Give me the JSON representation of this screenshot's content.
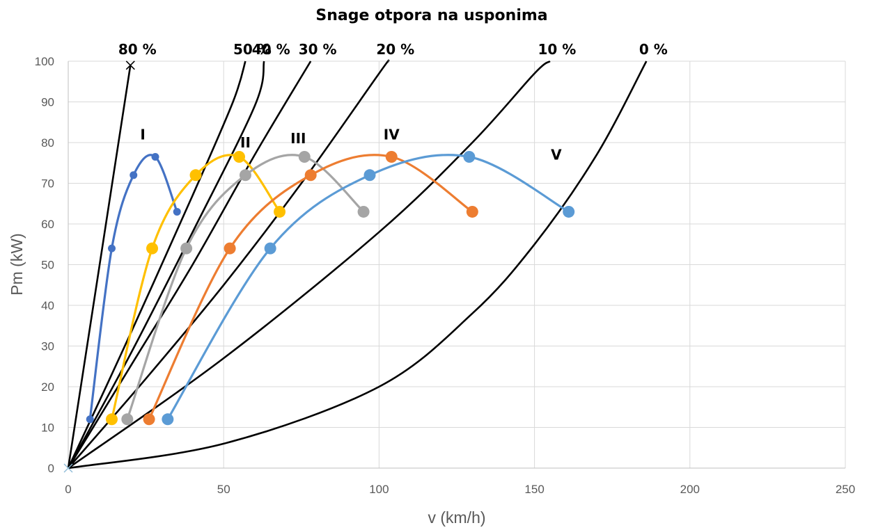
{
  "chart_data": {
    "type": "line",
    "title": "Snage otpora na usponima",
    "xlabel": "v (km/h)",
    "ylabel": "Pm (kW)",
    "xlim": [
      0,
      250
    ],
    "ylim": [
      0,
      100
    ],
    "x_ticks": [
      "0",
      "50",
      "100",
      "150",
      "200",
      "250"
    ],
    "y_ticks": [
      "0",
      "10",
      "20",
      "30",
      "40",
      "50",
      "60",
      "70",
      "80",
      "90",
      "100"
    ],
    "grid": true,
    "legend": "none",
    "colors": {
      "gear_I": "#4472c4",
      "gear_II": "#ffc000",
      "gear_III": "#a5a5a5",
      "gear_IV": "#ed7d31",
      "gear_V": "#5b9bd5",
      "resistance": "#000000"
    },
    "resistance_curves": [
      {
        "label": "80 %",
        "points": [
          [
            0,
            0
          ],
          [
            20,
            99
          ]
        ]
      },
      {
        "label": "50 %",
        "points": [
          [
            0,
            0
          ],
          [
            20,
            33
          ],
          [
            40,
            67
          ],
          [
            53,
            90
          ],
          [
            57,
            100
          ]
        ]
      },
      {
        "label": "40 %",
        "points": [
          [
            0,
            0
          ],
          [
            20,
            28
          ],
          [
            40,
            58
          ],
          [
            60,
            89
          ],
          [
            63,
            100
          ]
        ]
      },
      {
        "label": "30 %",
        "points": [
          [
            0,
            0
          ],
          [
            20,
            25
          ],
          [
            40,
            50
          ],
          [
            60,
            77
          ],
          [
            78,
            100
          ]
        ]
      },
      {
        "label": "20 %",
        "points": [
          [
            0,
            0
          ],
          [
            25,
            22
          ],
          [
            50,
            45
          ],
          [
            75,
            70
          ],
          [
            100,
            97
          ],
          [
            103,
            100
          ]
        ]
      },
      {
        "label": "10 %",
        "points": [
          [
            0,
            0
          ],
          [
            50,
            27
          ],
          [
            100,
            58
          ],
          [
            130,
            80
          ],
          [
            150,
            97
          ],
          [
            155,
            100
          ]
        ]
      },
      {
        "label": "0 %",
        "points": [
          [
            0,
            0
          ],
          [
            50,
            6
          ],
          [
            100,
            20
          ],
          [
            130,
            38
          ],
          [
            150,
            55
          ],
          [
            170,
            77
          ],
          [
            186,
            100
          ]
        ]
      }
    ],
    "series": [
      {
        "name": "I",
        "points": [
          [
            7,
            12
          ],
          [
            14,
            54
          ],
          [
            21,
            72
          ],
          [
            28,
            76.5
          ],
          [
            35,
            63
          ]
        ]
      },
      {
        "name": "II",
        "points": [
          [
            14,
            12
          ],
          [
            27,
            54
          ],
          [
            41,
            72
          ],
          [
            55,
            76.5
          ],
          [
            68,
            63
          ]
        ]
      },
      {
        "name": "III",
        "points": [
          [
            19,
            12
          ],
          [
            38,
            54
          ],
          [
            57,
            72
          ],
          [
            76,
            76.5
          ],
          [
            95,
            63
          ]
        ]
      },
      {
        "name": "IV",
        "points": [
          [
            26,
            12
          ],
          [
            52,
            54
          ],
          [
            78,
            72
          ],
          [
            104,
            76.5
          ],
          [
            130,
            63
          ]
        ]
      },
      {
        "name": "V",
        "points": [
          [
            32,
            12
          ],
          [
            65,
            54
          ],
          [
            97,
            72
          ],
          [
            129,
            76.5
          ],
          [
            161,
            63
          ]
        ]
      }
    ],
    "series_labels": [
      {
        "text": "I",
        "at": [
          24,
          82
        ]
      },
      {
        "text": "II",
        "at": [
          57,
          80
        ]
      },
      {
        "text": "III",
        "at": [
          74,
          81
        ]
      },
      {
        "text": "IV",
        "at": [
          104,
          82
        ]
      },
      {
        "text": "V",
        "at": [
          157,
          77
        ]
      }
    ]
  }
}
